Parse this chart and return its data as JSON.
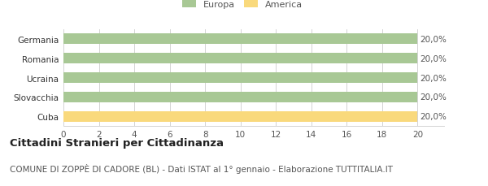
{
  "categories": [
    "Germania",
    "Romania",
    "Ucraina",
    "Slovacchia",
    "Cuba"
  ],
  "values": [
    20,
    20,
    20,
    20,
    20
  ],
  "bar_colors": [
    "#a8c895",
    "#a8c895",
    "#a8c895",
    "#a8c895",
    "#f9d97c"
  ],
  "labels": [
    "20,0%",
    "20,0%",
    "20,0%",
    "20,0%",
    "20,0%"
  ],
  "legend": [
    {
      "label": "Europa",
      "color": "#a8c895"
    },
    {
      "label": "America",
      "color": "#f9d97c"
    }
  ],
  "xlim": [
    0,
    20
  ],
  "xticks": [
    0,
    2,
    4,
    6,
    8,
    10,
    12,
    14,
    16,
    18,
    20
  ],
  "title": "Cittadini Stranieri per Cittadinanza",
  "subtitle": "COMUNE DI ZOPPÈ DI CADORE (BL) - Dati ISTAT al 1° gennaio - Elaborazione TUTTITALIA.IT",
  "background_color": "#ffffff",
  "bar_height": 0.55,
  "grid_color": "#cccccc",
  "label_fontsize": 7.5,
  "tick_fontsize": 7.5,
  "title_fontsize": 9.5,
  "subtitle_fontsize": 7.5
}
